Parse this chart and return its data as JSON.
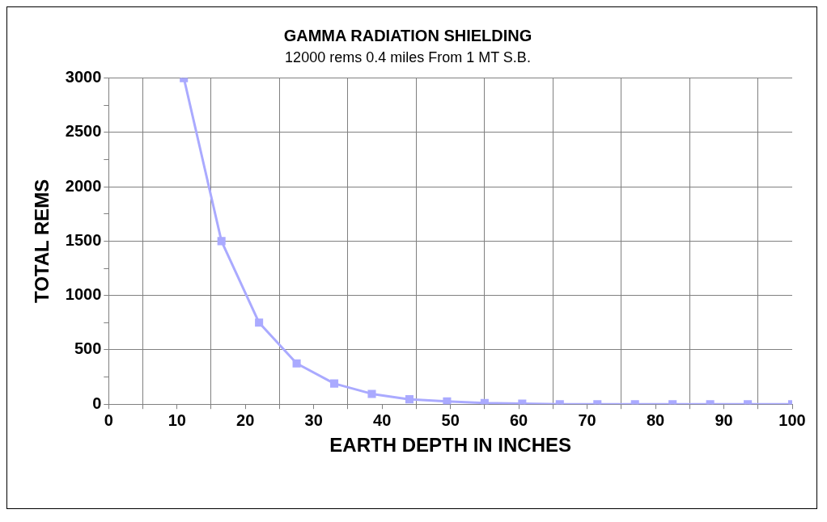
{
  "chart_data": {
    "type": "line",
    "title": "GAMMA RADIATION SHIELDING",
    "subtitle": "12000 rems 0.4 miles From 1 MT S.B.",
    "xlabel": "EARTH DEPTH IN INCHES",
    "ylabel": "TOTAL REMS",
    "x": [
      11,
      16.5,
      22,
      27.5,
      33,
      38.5,
      44,
      49.5,
      55,
      60.5,
      66,
      71.5,
      77,
      82.5,
      88,
      93.5,
      100
    ],
    "series": [
      {
        "color": "#aaaaff",
        "values": [
          3000,
          1500,
          750,
          375,
          190,
          95,
          45,
          25,
          10,
          5,
          0,
          0,
          0,
          0,
          0,
          0,
          0
        ]
      }
    ],
    "xlim": [
      0,
      100
    ],
    "xticks": [
      0,
      {
        "value": 5,
        "label": null
      },
      10,
      {
        "value": 15,
        "label": null
      },
      20,
      {
        "value": 25,
        "label": null
      },
      30,
      {
        "value": 35,
        "label": null
      },
      40,
      {
        "value": 45,
        "label": null
      },
      50,
      {
        "value": 55,
        "label": null
      },
      60,
      {
        "value": 65,
        "label": null
      },
      70,
      {
        "value": 75,
        "label": null
      },
      80,
      {
        "value": 85,
        "label": null
      },
      90,
      {
        "value": 95,
        "label": null
      },
      100
    ],
    "ylim": [
      0,
      3000
    ],
    "yticks": [
      0,
      {
        "value": 250,
        "label": null
      },
      500,
      {
        "value": 750,
        "label": null
      },
      1000,
      {
        "value": 1250,
        "label": null
      },
      1500,
      {
        "value": 1750,
        "label": null
      },
      2000,
      {
        "value": 2250,
        "label": null
      },
      2500,
      {
        "value": 2750,
        "label": null
      },
      3000
    ],
    "grid": true,
    "legend": false,
    "marker": "square",
    "line_style": "solid"
  }
}
